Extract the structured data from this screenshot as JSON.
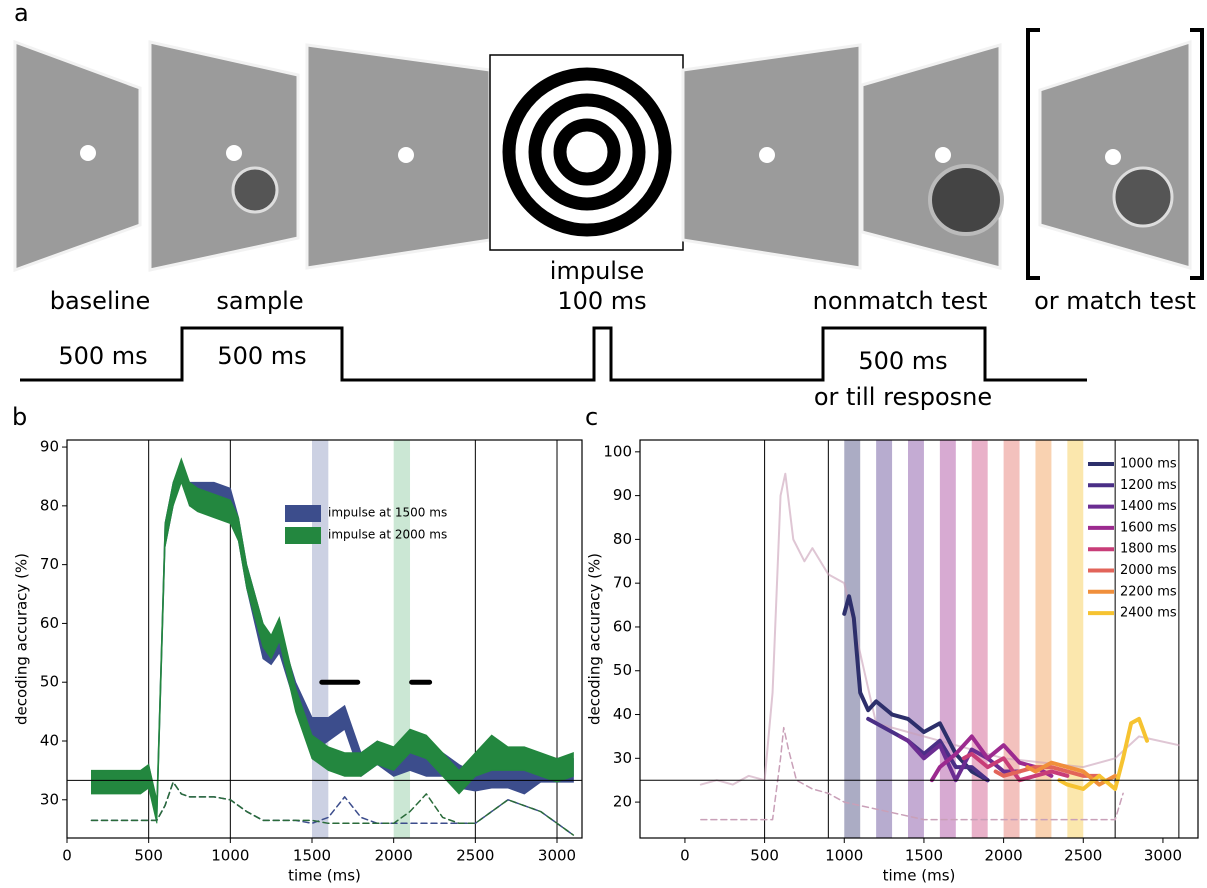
{
  "panel_a": {
    "label": "a",
    "stages": [
      "baseline",
      "sample",
      "impulse",
      "100 ms",
      "nonmatch test",
      "or match test"
    ],
    "durations": [
      "500 ms",
      "500 ms",
      "500 ms",
      "or till resposne"
    ]
  },
  "chart_data": [
    {
      "type": "line",
      "label": "b",
      "xlabel": "time (ms)",
      "ylabel": "decoding accuracy (%)",
      "xlim": [
        0,
        3153
      ],
      "xticks": [
        0,
        500,
        1000,
        1500,
        2000,
        2500,
        3000
      ],
      "ylim": [
        23.5,
        91.2
      ],
      "yticks": [
        30,
        40,
        50,
        60,
        70,
        80,
        90
      ],
      "hline": 33.3,
      "vlines": [
        500,
        1000,
        2500,
        3000
      ],
      "spans": [
        {
          "start": 1500,
          "end": 1600,
          "color": "#7f8cb8"
        },
        {
          "start": 2000,
          "end": 2100,
          "color": "#7cc293"
        }
      ],
      "sig_bars": [
        {
          "start": 1560,
          "end": 1780,
          "y": 50
        },
        {
          "start": 2110,
          "end": 2220,
          "y": 50
        }
      ],
      "x": [
        150,
        250,
        350,
        450,
        500,
        550,
        600,
        650,
        700,
        750,
        800,
        900,
        1000,
        1050,
        1100,
        1200,
        1250,
        1300,
        1400,
        1500,
        1600,
        1700,
        1800,
        1900,
        2000,
        2100,
        2200,
        2300,
        2400,
        2500,
        2600,
        2700,
        2800,
        2900,
        3000,
        3100
      ],
      "series": [
        {
          "name": "impulse at 1500 ms",
          "color": "#3c4d8c",
          "lower": [
            31.5,
            31.5,
            32,
            32,
            32.5,
            26.5,
            73,
            80,
            85,
            80,
            80,
            80,
            79,
            74,
            66,
            54,
            53,
            55,
            46,
            38,
            40,
            42,
            34,
            36,
            34,
            35,
            34,
            34,
            32,
            31.5,
            32,
            32,
            31,
            33,
            33,
            33
          ],
          "upper": [
            34.5,
            34.5,
            34.5,
            34.5,
            36,
            29.5,
            77,
            84,
            87,
            84,
            84,
            84,
            83,
            78,
            70,
            60,
            57,
            59,
            50,
            44,
            44,
            46,
            38,
            40,
            38,
            39,
            38,
            38,
            36,
            34.5,
            36,
            36,
            37,
            37,
            37,
            37
          ]
        },
        {
          "name": "impulse at 2000 ms",
          "color": "#23873f",
          "lower": [
            31,
            31,
            31,
            31,
            32,
            26,
            73,
            80,
            84,
            80,
            79,
            78,
            77,
            74,
            66,
            56,
            54,
            57,
            45,
            37,
            35,
            34,
            34,
            36,
            35,
            38,
            37,
            34,
            31,
            34,
            35,
            35,
            35,
            34,
            33,
            34
          ],
          "upper": [
            35,
            35,
            35,
            35,
            36,
            30,
            77,
            84,
            88,
            84,
            83,
            82,
            81,
            78,
            70,
            60,
            58,
            61,
            49,
            41,
            39,
            38,
            38,
            40,
            39,
            42,
            41,
            38,
            35,
            38,
            41,
            39,
            39,
            38,
            37,
            38
          ]
        },
        {
          "color": "#3c4d8c",
          "dash": true,
          "values": [
            26.5,
            26.5,
            26.5,
            26.5,
            26.5,
            26.5,
            29,
            33,
            31,
            30.5,
            30.5,
            30.5,
            30,
            29,
            28,
            26.5,
            26.5,
            26.5,
            26.5,
            26,
            27,
            30.5,
            27,
            26,
            26,
            26,
            26,
            26,
            26,
            26,
            28,
            30,
            29,
            28,
            26,
            24
          ]
        },
        {
          "color": "#2a6b3a",
          "dash": true,
          "values": [
            26.5,
            26.5,
            26.5,
            26.5,
            26.5,
            26.5,
            29,
            33,
            31,
            30.5,
            30.5,
            30.5,
            30,
            29,
            28,
            26.5,
            26.5,
            26.5,
            26.5,
            26.5,
            26,
            26,
            26,
            26,
            26,
            28,
            31,
            27,
            26,
            26,
            28,
            30,
            29,
            28,
            26,
            24
          ]
        }
      ]
    },
    {
      "type": "line",
      "label": "c",
      "xlabel": "time (ms)",
      "ylabel": "decoding accuracy (%)",
      "xlim": [
        -282,
        3220
      ],
      "xticks": [
        0,
        500,
        1000,
        1500,
        2000,
        2500,
        3000
      ],
      "ylim": [
        11.8,
        102.7
      ],
      "yticks": [
        20,
        30,
        40,
        50,
        60,
        70,
        80,
        90,
        100
      ],
      "hline": 25,
      "vlines": [
        500,
        900,
        2700,
        3100
      ],
      "spans": [
        {
          "start": 1000,
          "end": 1100,
          "color": "#2d2f6b"
        },
        {
          "start": 1200,
          "end": 1300,
          "color": "#4a2f86"
        },
        {
          "start": 1400,
          "end": 1500,
          "color": "#6b2d92"
        },
        {
          "start": 1600,
          "end": 1700,
          "color": "#9c2a8f"
        },
        {
          "start": 1800,
          "end": 1900,
          "color": "#c83d78"
        },
        {
          "start": 2000,
          "end": 2100,
          "color": "#e2645a"
        },
        {
          "start": 2200,
          "end": 2300,
          "color": "#f08f3c"
        },
        {
          "start": 2400,
          "end": 2500,
          "color": "#f6c331"
        }
      ],
      "series": [
        {
          "color": "#c9a0b8",
          "x": [
            100,
            200,
            300,
            400,
            500,
            550,
            600,
            630,
            680,
            750,
            800,
            900,
            1000,
            1200,
            1500,
            2000,
            2500,
            2700,
            2850,
            3100
          ],
          "values": [
            24,
            25,
            24,
            26,
            25,
            45,
            90,
            95,
            80,
            75,
            78,
            72,
            70,
            38,
            35,
            30,
            28,
            30,
            35,
            33
          ]
        },
        {
          "color": "#c9a0b8",
          "dash": true,
          "x": [
            100,
            500,
            550,
            600,
            620,
            650,
            700,
            800,
            900,
            1000,
            1500,
            2000,
            2500,
            2700,
            2750
          ],
          "values": [
            16,
            16,
            16,
            30,
            37,
            32,
            25,
            23,
            22,
            20,
            16,
            16,
            16,
            16,
            22
          ]
        },
        {
          "name": "1000 ms",
          "color": "#2d2f6b",
          "x": [
            1000,
            1030,
            1060,
            1100,
            1150,
            1200,
            1300,
            1400,
            1500,
            1600,
            1700,
            1800,
            1900
          ],
          "values": [
            63,
            67,
            62,
            45,
            41,
            43,
            40,
            39,
            36,
            38,
            31,
            27,
            25
          ]
        },
        {
          "name": "1200 ms",
          "color": "#4a2f86",
          "x": [
            1150,
            1200,
            1300,
            1400,
            1500,
            1600,
            1700,
            1800,
            1900
          ],
          "values": [
            39,
            38,
            36,
            34,
            31,
            34,
            28,
            28,
            25
          ]
        },
        {
          "name": "1400 ms",
          "color": "#6b2d92",
          "x": [
            1350,
            1400,
            1500,
            1600,
            1700,
            1800,
            1900,
            2000,
            2100
          ],
          "values": [
            35,
            34,
            30,
            33,
            25,
            32,
            30,
            27,
            27
          ]
        },
        {
          "name": "1600 ms",
          "color": "#9c2a8f",
          "x": [
            1550,
            1600,
            1700,
            1800,
            1900,
            2000,
            2100,
            2200,
            2300
          ],
          "values": [
            25,
            28,
            31,
            35,
            30,
            33,
            29,
            28,
            26
          ]
        },
        {
          "name": "1800 ms",
          "color": "#c83d78",
          "x": [
            1750,
            1800,
            1900,
            2000,
            2100,
            2200,
            2300,
            2400
          ],
          "values": [
            30,
            31,
            28,
            30,
            25,
            26,
            27,
            26
          ]
        },
        {
          "name": "2000 ms",
          "color": "#e2645a",
          "x": [
            1950,
            2000,
            2100,
            2200,
            2300,
            2400,
            2500,
            2600
          ],
          "values": [
            27,
            26,
            27,
            28,
            28,
            27,
            26,
            26
          ]
        },
        {
          "name": "2200 ms",
          "color": "#f08f3c",
          "x": [
            2150,
            2200,
            2300,
            2400,
            2500,
            2600,
            2700
          ],
          "values": [
            28,
            27,
            29,
            28,
            27,
            24,
            26
          ]
        },
        {
          "name": "2400 ms",
          "color": "#f6c331",
          "x": [
            2350,
            2400,
            2500,
            2600,
            2700,
            2750,
            2800,
            2850,
            2900
          ],
          "values": [
            25,
            24,
            23,
            26,
            23,
            30,
            38,
            39,
            34
          ]
        }
      ]
    }
  ]
}
